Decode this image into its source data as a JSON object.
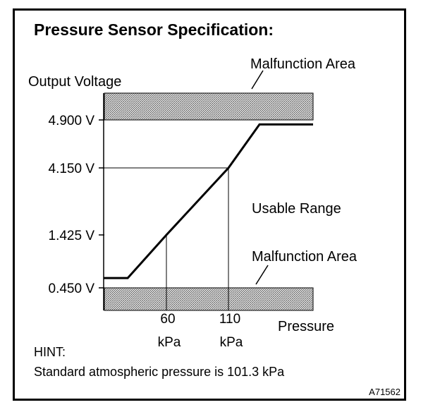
{
  "chart_data": {
    "type": "line",
    "title": "Pressure Sensor Specification:",
    "ylabel": "Output Voltage",
    "xlabel": "Pressure",
    "y_ticks": [
      {
        "value": 4.9,
        "label": "4.900 V"
      },
      {
        "value": 4.15,
        "label": "4.150 V"
      },
      {
        "value": 1.425,
        "label": "1.425 V"
      },
      {
        "value": 0.45,
        "label": "0.450 V"
      }
    ],
    "x_ticks": [
      {
        "value": 60,
        "label": "60",
        "unit": "kPa"
      },
      {
        "value": 110,
        "label": "110",
        "unit": "kPa"
      }
    ],
    "series": [
      {
        "x": [
          0,
          23,
          60,
          110,
          132,
          170
        ],
        "y": [
          0.63,
          0.63,
          1.425,
          4.15,
          4.83,
          4.83
        ]
      }
    ],
    "regions": [
      {
        "label": "Malfunction Area",
        "y_from": 4.9,
        "y_to": 5.6
      },
      {
        "label": "Malfunction Area",
        "y_from": -0.4,
        "y_to": 0.45
      }
    ],
    "usable_range_label": "Usable Range",
    "xlim": [
      0,
      170
    ]
  },
  "hint": {
    "label": "HINT:",
    "text": "Standard atmospheric pressure is 101.3 kPa"
  },
  "figure_code": "A71562"
}
